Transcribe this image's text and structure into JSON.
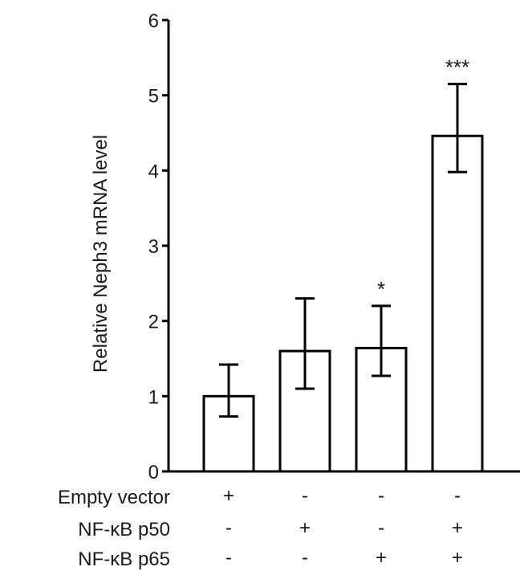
{
  "chart_data": {
    "type": "bar",
    "title": "",
    "xlabel": "",
    "ylabel": "Relative Neph3 mRNA level",
    "ylim": [
      0,
      6
    ],
    "yticks": [
      0,
      1,
      2,
      3,
      4,
      5,
      6
    ],
    "bars": [
      {
        "value": 1.0,
        "err_low": 0.73,
        "err_high": 1.42,
        "significance": ""
      },
      {
        "value": 1.6,
        "err_low": 1.1,
        "err_high": 2.3,
        "significance": ""
      },
      {
        "value": 1.64,
        "err_low": 1.27,
        "err_high": 2.2,
        "significance": "*"
      },
      {
        "value": 4.46,
        "err_low": 3.98,
        "err_high": 5.15,
        "significance": "***"
      }
    ],
    "bar_fill": "#ffffff",
    "bar_stroke": "#000000",
    "grid": false,
    "conditions": [
      {
        "label": "Empty vector",
        "signs": [
          "+",
          "-",
          "-",
          "-"
        ]
      },
      {
        "label": "NF-κB p50",
        "signs": [
          "-",
          "+",
          "-",
          "+"
        ]
      },
      {
        "label": "NF-κB p65",
        "signs": [
          "-",
          "-",
          "+",
          "+"
        ]
      }
    ]
  }
}
